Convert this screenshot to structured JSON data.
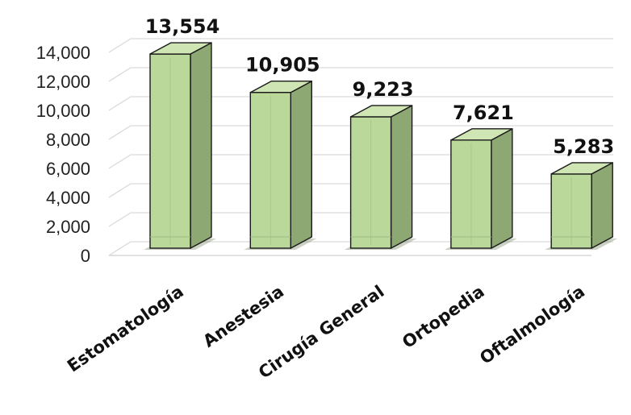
{
  "chart_data": {
    "type": "bar",
    "categories": [
      "Estomatología",
      "Anestesia",
      "Cirugía General",
      "Ortopedia",
      "Oftalmología"
    ],
    "values": [
      13554,
      10905,
      9223,
      7621,
      5283
    ],
    "value_labels": [
      "13,554",
      "10,905",
      "9,223",
      "7,621",
      "5,283"
    ],
    "yticks": [
      0,
      2000,
      4000,
      6000,
      8000,
      10000,
      12000,
      14000
    ],
    "ytick_labels": [
      "0",
      "2,000",
      "4,000",
      "6,000",
      "8,000",
      "10,000",
      "12,000",
      "14,000"
    ],
    "ylim": [
      0,
      14000
    ],
    "grid": true,
    "style_3d": true,
    "colors": {
      "bar_front": "#bad89a",
      "bar_side": "#8da872",
      "bar_top": "#cfe6b4",
      "bar_edge": "#1a1a1a",
      "gridline": "#d9d9d9",
      "floor": "#cfcfcf"
    }
  }
}
